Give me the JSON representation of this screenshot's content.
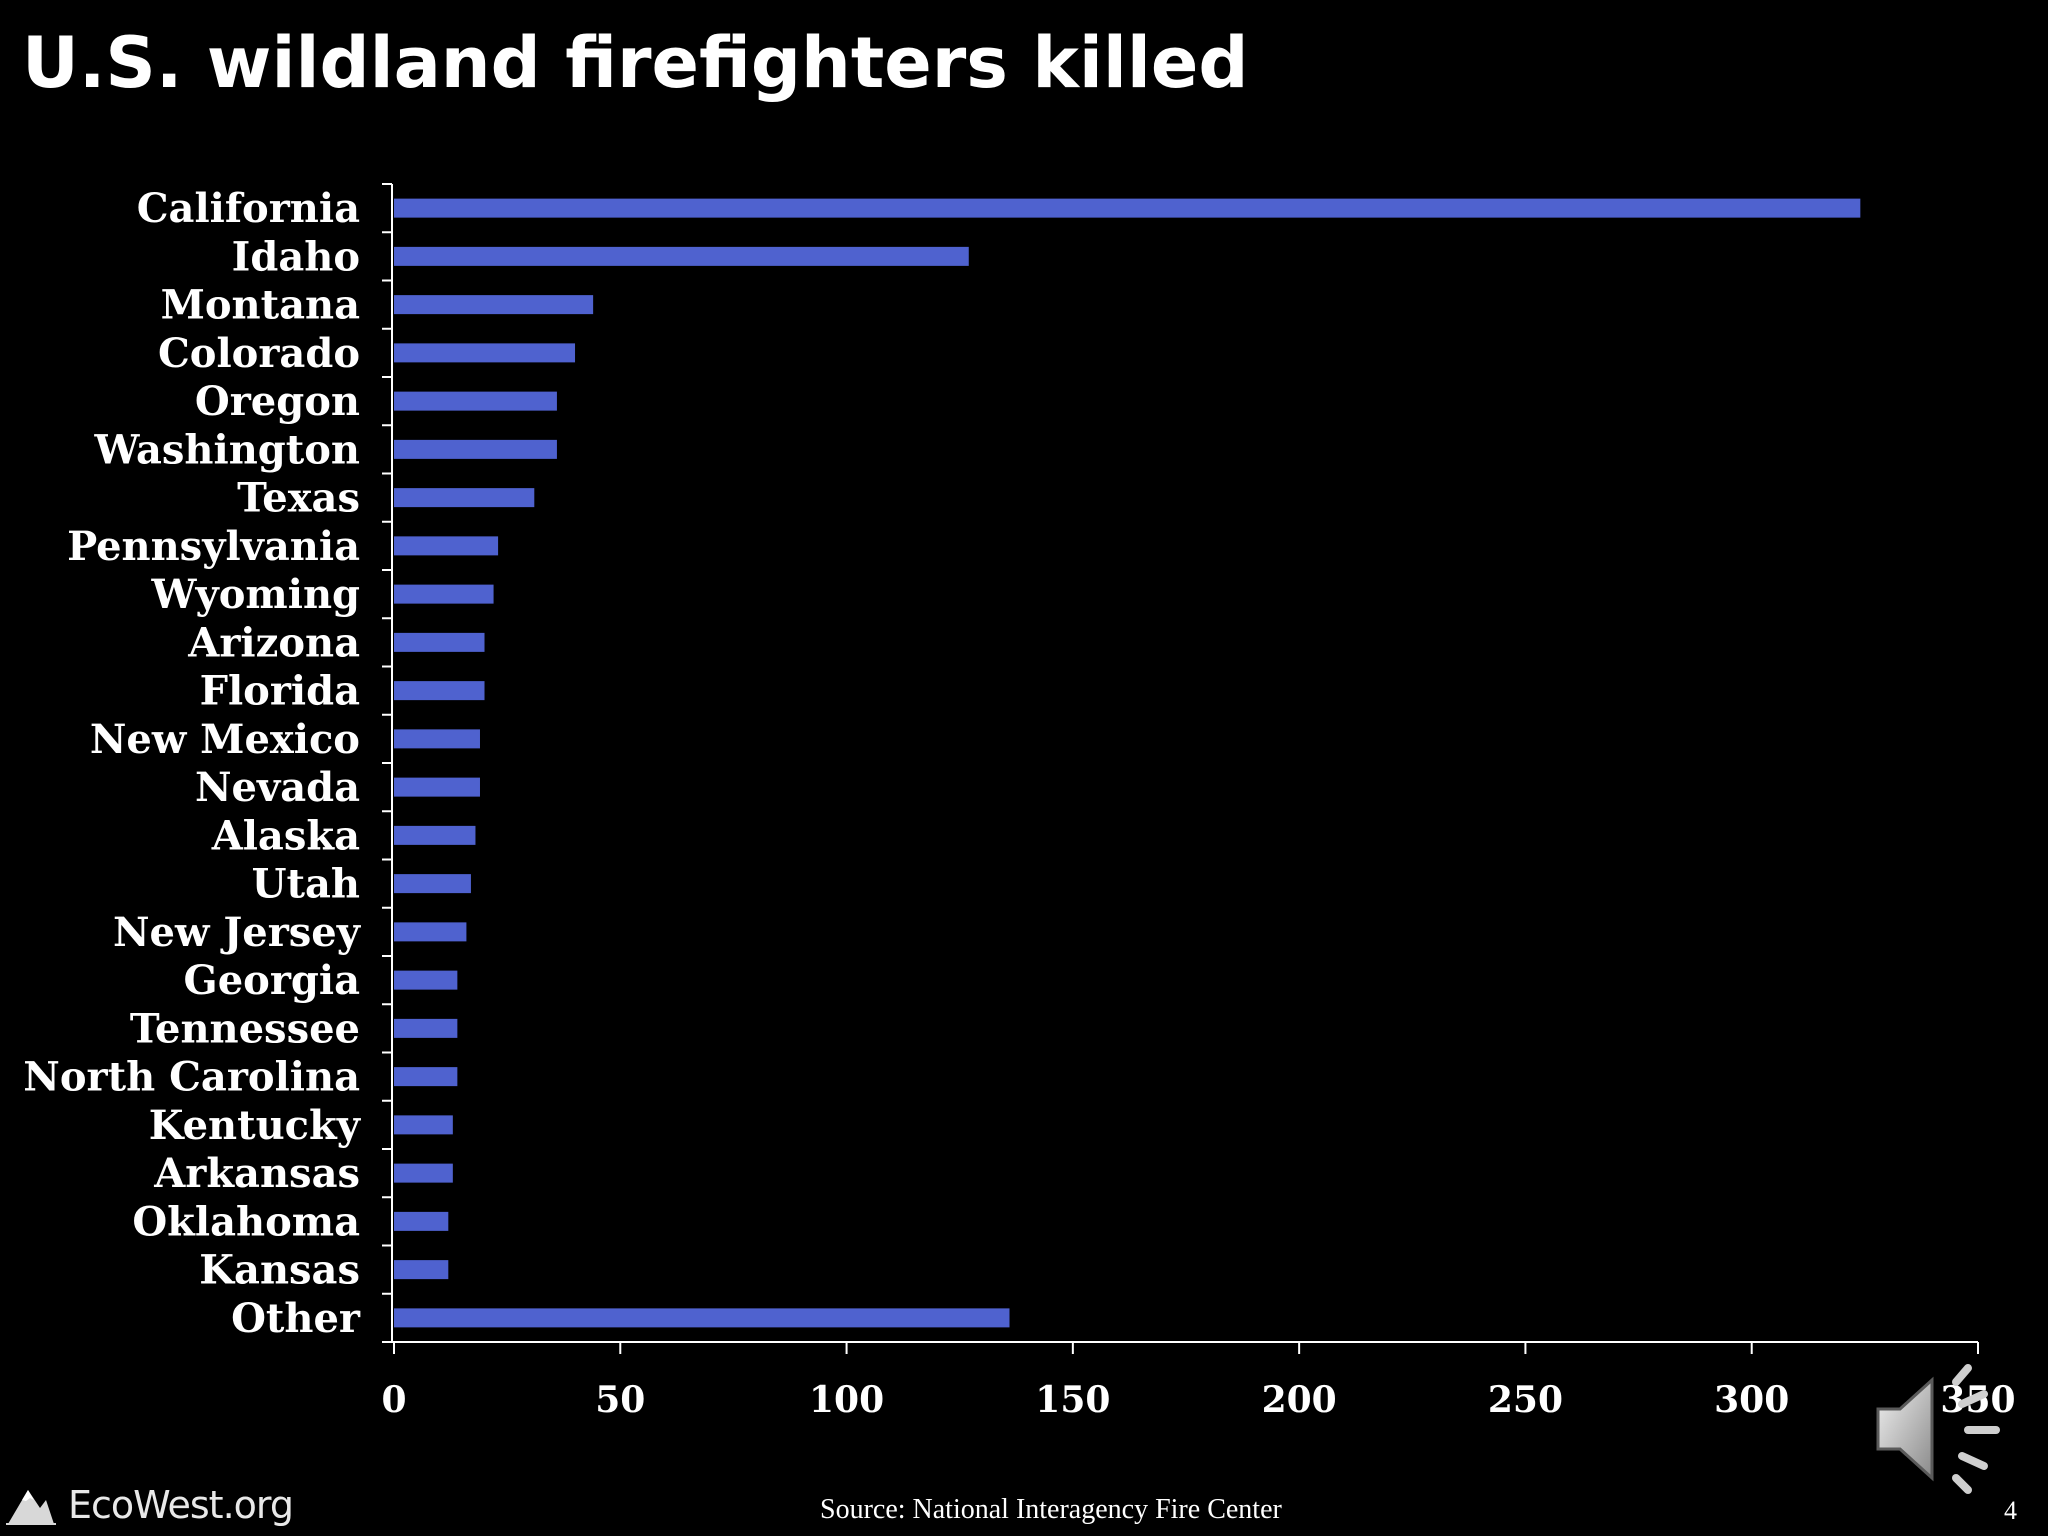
{
  "slide": {
    "title": "U.S. wildland firefighters killed",
    "source": "Source:  National Interagency Fire Center",
    "page_number": "4",
    "logo_text": "EcoWest.org",
    "logo_icon": "mountain-icon",
    "audio_icon": "speaker-icon"
  },
  "colors": {
    "background": "#000000",
    "bar": "#4f62cf",
    "text": "#ffffff"
  },
  "chart_data": {
    "type": "bar",
    "orientation": "horizontal",
    "categories": [
      "California",
      "Idaho",
      "Montana",
      "Colorado",
      "Oregon",
      "Washington",
      "Texas",
      "Pennsylvania",
      "Wyoming",
      "Arizona",
      "Florida",
      "New Mexico",
      "Nevada",
      "Alaska",
      "Utah",
      "New Jersey",
      "Georgia",
      "Tennessee",
      "North Carolina",
      "Kentucky",
      "Arkansas",
      "Oklahoma",
      "Kansas",
      "Other"
    ],
    "values": [
      324,
      127,
      44,
      40,
      36,
      36,
      31,
      23,
      22,
      20,
      20,
      19,
      19,
      18,
      17,
      16,
      14,
      14,
      14,
      13,
      13,
      12,
      12,
      136
    ],
    "xlim": [
      0,
      350
    ],
    "xticks": [
      0,
      50,
      100,
      150,
      200,
      250,
      300,
      350
    ],
    "title": "U.S. wildland firefighters killed",
    "xlabel": "",
    "ylabel": "",
    "grid": false,
    "legend": "none"
  }
}
